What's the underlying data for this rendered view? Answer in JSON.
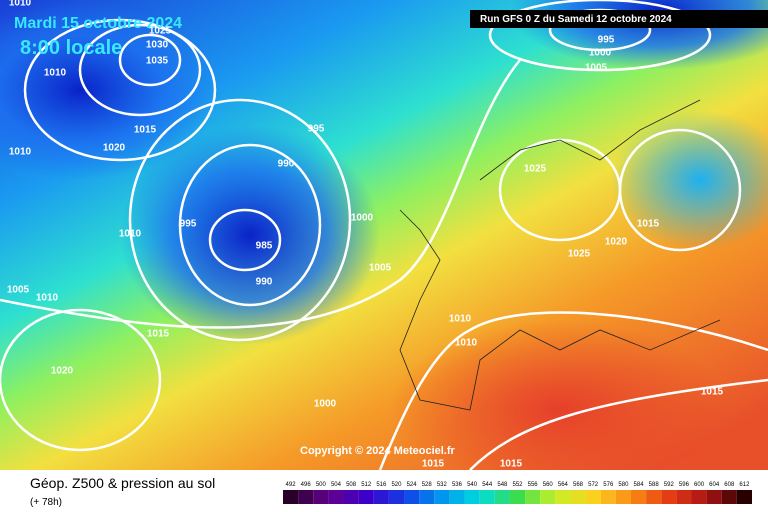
{
  "header": {
    "date": "Mardi 15 octobre 2024",
    "time": "8:00 locale",
    "run": "Run GFS 0 Z du Samedi 12 octobre 2024"
  },
  "isobar_labels": [
    "1010",
    "1025",
    "1030",
    "1035",
    "1010",
    "1015",
    "1020",
    "1010",
    "995",
    "990",
    "995",
    "1010",
    "985",
    "990",
    "1000",
    "1005",
    "1005",
    "1010",
    "1015",
    "1020",
    "1000",
    "1010",
    "1010",
    "1025",
    "1025",
    "1020",
    "1015",
    "995",
    "1000",
    "1005",
    "1015",
    "1015",
    "1015"
  ],
  "copyright": "Copyright © 2024 Meteociel.fr",
  "legend": {
    "title": "Géop. Z500 & pression au sol",
    "lead": "(+ 78h)",
    "scale": [
      492,
      496,
      500,
      504,
      508,
      512,
      516,
      520,
      524,
      528,
      532,
      536,
      540,
      544,
      548,
      552,
      556,
      560,
      564,
      568,
      572,
      576,
      580,
      584,
      588,
      592,
      596,
      600,
      604,
      608,
      612
    ]
  }
}
